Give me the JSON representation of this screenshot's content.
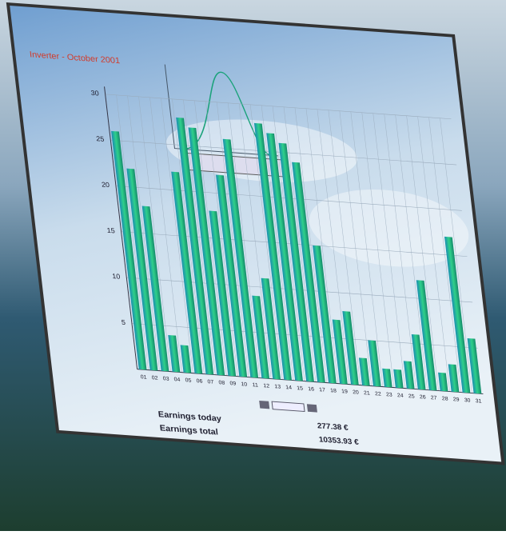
{
  "chart_data": {
    "type": "bar",
    "title": "Inverter - October 2001",
    "categories": [
      "01",
      "02",
      "03",
      "04",
      "05",
      "06",
      "07",
      "08",
      "09",
      "10",
      "11",
      "12",
      "13",
      "14",
      "15",
      "16",
      "17",
      "18",
      "19",
      "20",
      "21",
      "22",
      "23",
      "24",
      "25",
      "26",
      "27",
      "28",
      "29",
      "30",
      "31"
    ],
    "values": [
      26,
      22,
      18,
      4,
      3,
      22,
      28,
      27,
      18,
      22,
      26,
      9,
      11,
      28,
      27,
      26,
      24,
      15,
      7,
      8,
      3,
      5,
      2,
      2,
      3,
      6,
      12,
      2,
      3,
      17,
      6
    ],
    "color": "#1fae8a",
    "ylim": [
      0,
      30
    ],
    "yticks": [
      5,
      10,
      15,
      20,
      25,
      30
    ],
    "grid": true,
    "earnings": [
      {
        "label": "Earnings today",
        "value": "277.38 €"
      },
      {
        "label": "Earnings total",
        "value": "10353.93 €"
      }
    ]
  }
}
